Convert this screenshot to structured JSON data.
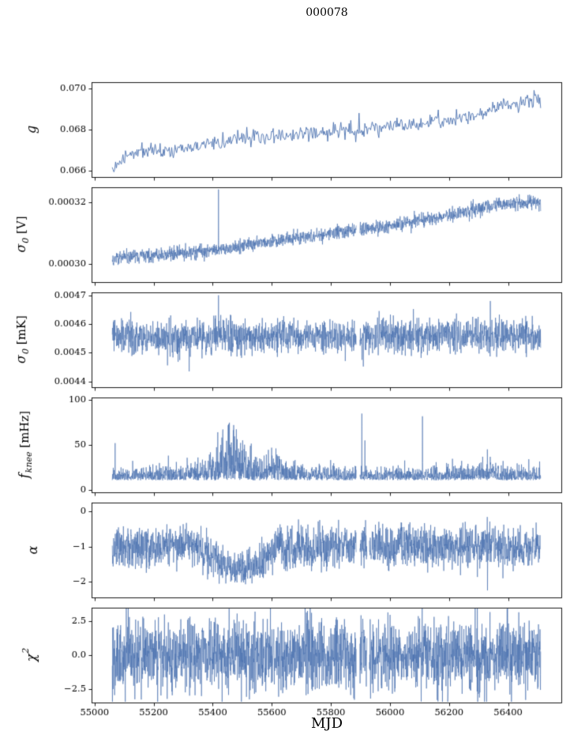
{
  "title": "000078",
  "xlabel": "MJD",
  "chart_data": {
    "type": "line",
    "title": "000078",
    "xlabel": "MJD",
    "color": "#4c72b0",
    "x_range": [
      54990,
      56580
    ],
    "x_data_range": [
      55060,
      56510
    ],
    "xticks": [
      55000,
      55200,
      55400,
      55600,
      55800,
      56000,
      56200,
      56400
    ],
    "xtick_labels": [
      "55000",
      "55200",
      "55400",
      "55600",
      "55800",
      "56000",
      "56200",
      "56400"
    ],
    "grid": false,
    "legend": "none",
    "panels": [
      {
        "name": "g",
        "ylabel_display": "g",
        "label": {
          "it": "g",
          "sub": "",
          "sup": "",
          "unit": ""
        },
        "ylim": [
          0.0657,
          0.0703
        ],
        "yticks": [
          0.066,
          0.068,
          0.07
        ],
        "ytick_labels": [
          "0.066",
          "0.068",
          "0.070"
        ],
        "n": 520,
        "lw": 0.9,
        "seed": 11,
        "noise": "gauss",
        "mean": {
          "x": [
            55060,
            55075,
            55090,
            55110,
            55130,
            55160,
            55190,
            55220,
            55260,
            55300,
            55340,
            55380,
            55420,
            55460,
            55500,
            55540,
            55580,
            55620,
            55660,
            55700,
            55750,
            55800,
            55850,
            55900,
            55950,
            56000,
            56050,
            56100,
            56150,
            56200,
            56250,
            56300,
            56330,
            56360,
            56390,
            56420,
            56450,
            56480,
            56510
          ],
          "y": [
            0.066,
            0.0663,
            0.0665,
            0.0667,
            0.0669,
            0.067,
            0.067,
            0.0671,
            0.067,
            0.0672,
            0.0672,
            0.0673,
            0.0674,
            0.0674,
            0.0676,
            0.0677,
            0.0676,
            0.0677,
            0.0677,
            0.0678,
            0.0678,
            0.0679,
            0.068,
            0.0679,
            0.0681,
            0.0682,
            0.0682,
            0.0683,
            0.0684,
            0.0684,
            0.0686,
            0.0687,
            0.0689,
            0.0692,
            0.0693,
            0.0692,
            0.0693,
            0.0694,
            0.0694
          ]
        },
        "spread": {
          "x": [
            55060,
            56510
          ],
          "y": [
            0.00019,
            0.00019
          ]
        },
        "spikes": [
          [
            55885,
            0.0674
          ],
          [
            55895,
            0.0688
          ]
        ],
        "gaps": []
      },
      {
        "name": "sigma0_V",
        "ylabel_display": "σ₀ [V]",
        "label": {
          "it": "σ",
          "sub": "0",
          "sup": "",
          "unit": " [V]"
        },
        "ylim": [
          0.000294,
          0.000325
        ],
        "yticks": [
          0.0003,
          0.00032
        ],
        "ytick_labels": [
          "0.00030",
          "0.00032"
        ],
        "n": 1900,
        "lw": 0.65,
        "seed": 22,
        "noise": "gauss",
        "mean": {
          "x": [
            55060,
            55150,
            55250,
            55350,
            55450,
            55550,
            55650,
            55750,
            55850,
            55950,
            56050,
            56150,
            56250,
            56350,
            56450,
            56510
          ],
          "y": [
            0.000302,
            0.0003025,
            0.000303,
            0.000304,
            0.000305,
            0.0003068,
            0.000308,
            0.0003092,
            0.0003108,
            0.000312,
            0.0003132,
            0.000315,
            0.0003168,
            0.0003188,
            0.0003198,
            0.00032
          ]
        },
        "spread": {
          "x": [
            55060,
            56510
          ],
          "y": [
            1.1e-06,
            1.1e-06
          ]
        },
        "spikes": [
          [
            55420,
            0.0003243
          ]
        ],
        "gaps": [
          [
            55886,
            55898
          ]
        ]
      },
      {
        "name": "sigma0_mK",
        "ylabel_display": "σ₀ [mK]",
        "label": {
          "it": "σ",
          "sub": "0",
          "sup": "",
          "unit": " [mK]"
        },
        "ylim": [
          0.00438,
          0.00471
        ],
        "yticks": [
          0.0044,
          0.0045,
          0.0046,
          0.0047
        ],
        "ytick_labels": [
          "0.0044",
          "0.0045",
          "0.0046",
          "0.0047"
        ],
        "n": 1900,
        "lw": 0.65,
        "seed": 33,
        "noise": "gauss",
        "mean": {
          "x": [
            55060,
            55200,
            55300,
            55400,
            55500,
            55600,
            55700,
            55800,
            55900,
            56000,
            56100,
            56200,
            56300,
            56400,
            56510
          ],
          "y": [
            0.004555,
            0.004553,
            0.00455,
            0.004556,
            0.004554,
            0.004556,
            0.004553,
            0.004555,
            0.004556,
            0.004558,
            0.004559,
            0.00456,
            0.004559,
            0.004561,
            0.00456
          ]
        },
        "spread": {
          "x": [
            55060,
            56510
          ],
          "y": [
            3e-05,
            3e-05
          ]
        },
        "spikes": [
          [
            55320,
            0.004435
          ],
          [
            55420,
            0.0047
          ],
          [
            55910,
            0.004452
          ],
          [
            56340,
            0.00468
          ]
        ],
        "gaps": [
          [
            55886,
            55898
          ]
        ]
      },
      {
        "name": "f_knee",
        "ylabel_display": "f_knee [mHz]",
        "label": {
          "it": "f",
          "sub": "knee",
          "sup": "",
          "unit": " [mHz]"
        },
        "ylim": [
          -3,
          103
        ],
        "yticks": [
          0,
          50,
          100
        ],
        "ytick_labels": [
          "0",
          "50",
          "100"
        ],
        "n": 2100,
        "lw": 0.65,
        "seed": 44,
        "noise": "abs",
        "mean": {
          "x": [
            55060,
            56510
          ],
          "y": [
            10.5,
            10.5
          ]
        },
        "spread": {
          "x": [
            55060,
            55250,
            55330,
            55380,
            55420,
            55450,
            55480,
            55510,
            55540,
            55560,
            55580,
            55600,
            55630,
            55660,
            55700,
            55800,
            56000,
            56200,
            56300,
            56330,
            56360,
            56400,
            56510
          ],
          "y": [
            7,
            7.5,
            9,
            11,
            22,
            30,
            28,
            22,
            14,
            11,
            15,
            18,
            12,
            9,
            8,
            7.5,
            7.5,
            7.5,
            9,
            11,
            9,
            7.5,
            7.5
          ]
        },
        "spikes": [
          [
            55070,
            52
          ],
          [
            55250,
            38
          ],
          [
            55905,
            85
          ],
          [
            55915,
            55
          ],
          [
            56110,
            82
          ],
          [
            56330,
            45
          ],
          [
            56470,
            34
          ]
        ],
        "gaps": [
          [
            55886,
            55898
          ]
        ]
      },
      {
        "name": "alpha",
        "ylabel_display": "α",
        "label": {
          "it": "α",
          "sub": "",
          "sup": "",
          "unit": ""
        },
        "ylim": [
          -2.45,
          0.25
        ],
        "yticks": [
          0,
          -1,
          -2
        ],
        "ytick_labels": [
          "0",
          "−1",
          "−2"
        ],
        "n": 2000,
        "lw": 0.65,
        "seed": 55,
        "noise": "gauss",
        "mean": {
          "x": [
            55060,
            55300,
            55340,
            55370,
            55400,
            55430,
            55460,
            55500,
            55530,
            55560,
            55590,
            55620,
            55650,
            55680,
            55720,
            55800,
            56510
          ],
          "y": [
            -1.0,
            -1.0,
            -1.05,
            -1.15,
            -1.3,
            -1.5,
            -1.62,
            -1.65,
            -1.6,
            -1.45,
            -1.2,
            -1.05,
            -1.1,
            -1.0,
            -1.05,
            -1.0,
            -1.0
          ]
        },
        "spread": {
          "x": [
            55060,
            55350,
            55420,
            55600,
            55650,
            56510
          ],
          "y": [
            0.3,
            0.28,
            0.24,
            0.26,
            0.3,
            0.3
          ]
        },
        "spikes": [
          [
            56330,
            -2.25
          ]
        ],
        "gaps": [
          [
            55886,
            55898
          ],
          [
            55922,
            55930
          ]
        ]
      },
      {
        "name": "chi2",
        "ylabel_display": "χ²",
        "label": {
          "it": "χ",
          "sub": "",
          "sup": "2",
          "unit": ""
        },
        "ylim": [
          -3.45,
          3.45
        ],
        "yticks": [
          2.5,
          0.0,
          -2.5
        ],
        "ytick_labels": [
          "2.5",
          "0.0",
          "−2.5"
        ],
        "n": 2200,
        "lw": 0.65,
        "seed": 66,
        "noise": "gauss",
        "mean": {
          "x": [
            55060,
            56510
          ],
          "y": [
            0,
            0
          ]
        },
        "spread": {
          "x": [
            55060,
            56510
          ],
          "y": [
            1.25,
            1.25
          ]
        },
        "spikes": [],
        "gaps": [
          [
            55886,
            55898
          ],
          [
            55922,
            55930
          ]
        ]
      }
    ]
  }
}
